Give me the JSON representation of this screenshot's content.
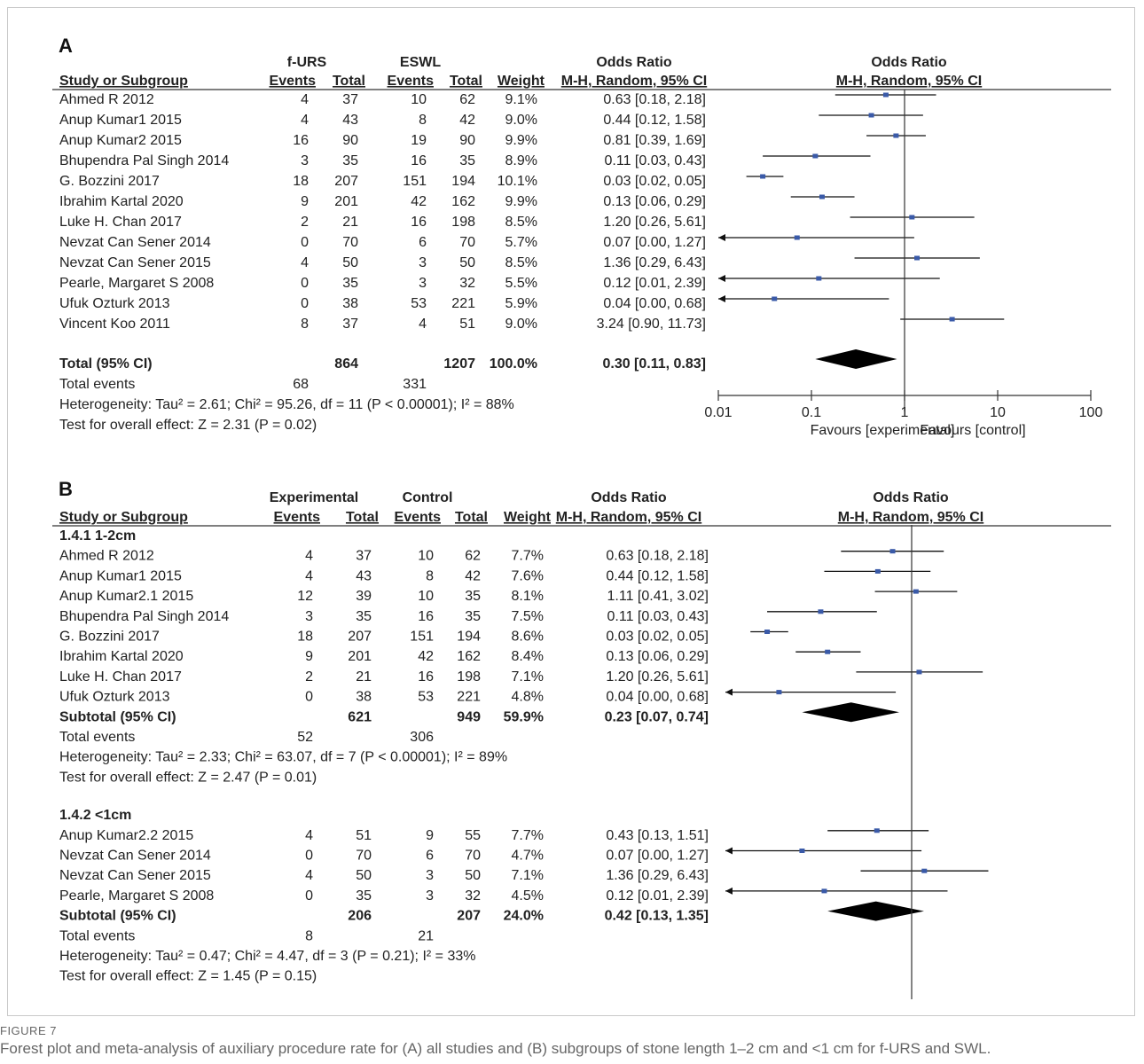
{
  "chart_data": [
    {
      "type": "forest",
      "panel": "A",
      "group_headers": [
        "f-URS",
        "ESWL"
      ],
      "columns": [
        "Study or Subgroup",
        "Events",
        "Total",
        "Events",
        "Total",
        "Weight"
      ],
      "or_header_top": "Odds Ratio",
      "or_header_sub": "M-H, Random, 95% CI",
      "plot_header_top": "Odds Ratio",
      "plot_header_sub": "M-H, Random, 95% CI",
      "axis": {
        "scale": "log",
        "ticks": [
          0.01,
          0.1,
          1,
          10,
          100
        ],
        "tick_labels": [
          "0.01",
          "0.1",
          "1",
          "10",
          "100"
        ],
        "xlim": [
          0.01,
          100
        ]
      },
      "favours_left": "Favours [experimental]",
      "favours_right": "Favours [control]",
      "sections": [
        {
          "heading": "",
          "studies": [
            {
              "name": "Ahmed R 2012",
              "e1": "4",
              "t1": "37",
              "e2": "10",
              "t2": "62",
              "weight": "9.1%",
              "ci_text": "0.63 [0.18, 2.18]",
              "or": 0.63,
              "lo": 0.18,
              "hi": 2.18
            },
            {
              "name": "Anup Kumar1 2015",
              "e1": "4",
              "t1": "43",
              "e2": "8",
              "t2": "42",
              "weight": "9.0%",
              "ci_text": "0.44 [0.12, 1.58]",
              "or": 0.44,
              "lo": 0.12,
              "hi": 1.58
            },
            {
              "name": "Anup Kumar2 2015",
              "e1": "16",
              "t1": "90",
              "e2": "19",
              "t2": "90",
              "weight": "9.9%",
              "ci_text": "0.81 [0.39, 1.69]",
              "or": 0.81,
              "lo": 0.39,
              "hi": 1.69
            },
            {
              "name": "Bhupendra Pal Singh 2014",
              "e1": "3",
              "t1": "35",
              "e2": "16",
              "t2": "35",
              "weight": "8.9%",
              "ci_text": "0.11 [0.03, 0.43]",
              "or": 0.11,
              "lo": 0.03,
              "hi": 0.43
            },
            {
              "name": "G. Bozzini 2017",
              "e1": "18",
              "t1": "207",
              "e2": "151",
              "t2": "194",
              "weight": "10.1%",
              "ci_text": "0.03 [0.02, 0.05]",
              "or": 0.03,
              "lo": 0.02,
              "hi": 0.05
            },
            {
              "name": "Ibrahim Kartal 2020",
              "e1": "9",
              "t1": "201",
              "e2": "42",
              "t2": "162",
              "weight": "9.9%",
              "ci_text": "0.13 [0.06, 0.29]",
              "or": 0.13,
              "lo": 0.06,
              "hi": 0.29
            },
            {
              "name": "Luke H. Chan 2017",
              "e1": "2",
              "t1": "21",
              "e2": "16",
              "t2": "198",
              "weight": "8.5%",
              "ci_text": "1.20 [0.26, 5.61]",
              "or": 1.2,
              "lo": 0.26,
              "hi": 5.61
            },
            {
              "name": "Nevzat Can Sener 2014",
              "e1": "0",
              "t1": "70",
              "e2": "6",
              "t2": "70",
              "weight": "5.7%",
              "ci_text": "0.07 [0.00, 1.27]",
              "or": 0.07,
              "lo": 0.004,
              "hi": 1.27
            },
            {
              "name": "Nevzat Can Sener 2015",
              "e1": "4",
              "t1": "50",
              "e2": "3",
              "t2": "50",
              "weight": "8.5%",
              "ci_text": "1.36 [0.29, 6.43]",
              "or": 1.36,
              "lo": 0.29,
              "hi": 6.43
            },
            {
              "name": "Pearle, Margaret S 2008",
              "e1": "0",
              "t1": "35",
              "e2": "3",
              "t2": "32",
              "weight": "5.5%",
              "ci_text": "0.12 [0.01, 2.39]",
              "or": 0.12,
              "lo": 0.006,
              "hi": 2.39
            },
            {
              "name": "Ufuk Ozturk 2013",
              "e1": "0",
              "t1": "38",
              "e2": "53",
              "t2": "221",
              "weight": "5.9%",
              "ci_text": "0.04 [0.00, 0.68]",
              "or": 0.04,
              "lo": 0.002,
              "hi": 0.68
            },
            {
              "name": "Vincent Koo 2011",
              "e1": "8",
              "t1": "37",
              "e2": "4",
              "t2": "51",
              "weight": "9.0%",
              "ci_text": "3.24 [0.90, 11.73]",
              "or": 3.24,
              "lo": 0.9,
              "hi": 11.73
            }
          ],
          "total": {
            "label": "Total (95% CI)",
            "t1": "864",
            "t2": "1207",
            "weight": "100.0%",
            "ci_text": "0.30 [0.11, 0.83]",
            "or": 0.3,
            "lo": 0.11,
            "hi": 0.83
          },
          "events": {
            "label": "Total events",
            "e1": "68",
            "e2": "331"
          },
          "heterogeneity": "Heterogeneity: Tau² = 2.61; Chi² = 95.26, df = 11 (P < 0.00001); I² = 88%",
          "overall": "Test for overall effect: Z = 2.31 (P = 0.02)"
        }
      ]
    },
    {
      "type": "forest",
      "panel": "B",
      "group_headers": [
        "Experimental",
        "Control"
      ],
      "columns": [
        "Study or Subgroup",
        "Events",
        "Total",
        "Events",
        "Total",
        "Weight"
      ],
      "or_header_top": "Odds Ratio",
      "or_header_sub": "M-H, Random, 95% CI",
      "plot_header_top": "Odds Ratio",
      "plot_header_sub": "M-H, Random, 95% CI",
      "axis": {
        "scale": "log",
        "xlim": [
          0.01,
          100
        ]
      },
      "sections": [
        {
          "heading": "1.4.1 1-2cm",
          "studies": [
            {
              "name": "Ahmed R 2012",
              "e1": "4",
              "t1": "37",
              "e2": "10",
              "t2": "62",
              "weight": "7.7%",
              "ci_text": "0.63 [0.18, 2.18]",
              "or": 0.63,
              "lo": 0.18,
              "hi": 2.18
            },
            {
              "name": "Anup Kumar1 2015",
              "e1": "4",
              "t1": "43",
              "e2": "8",
              "t2": "42",
              "weight": "7.6%",
              "ci_text": "0.44 [0.12, 1.58]",
              "or": 0.44,
              "lo": 0.12,
              "hi": 1.58
            },
            {
              "name": "Anup Kumar2.1 2015",
              "e1": "12",
              "t1": "39",
              "e2": "10",
              "t2": "35",
              "weight": "8.1%",
              "ci_text": "1.11 [0.41, 3.02]",
              "or": 1.11,
              "lo": 0.41,
              "hi": 3.02
            },
            {
              "name": "Bhupendra Pal Singh 2014",
              "e1": "3",
              "t1": "35",
              "e2": "16",
              "t2": "35",
              "weight": "7.5%",
              "ci_text": "0.11 [0.03, 0.43]",
              "or": 0.11,
              "lo": 0.03,
              "hi": 0.43
            },
            {
              "name": "G. Bozzini 2017",
              "e1": "18",
              "t1": "207",
              "e2": "151",
              "t2": "194",
              "weight": "8.6%",
              "ci_text": "0.03 [0.02, 0.05]",
              "or": 0.03,
              "lo": 0.02,
              "hi": 0.05
            },
            {
              "name": "Ibrahim Kartal 2020",
              "e1": "9",
              "t1": "201",
              "e2": "42",
              "t2": "162",
              "weight": "8.4%",
              "ci_text": "0.13 [0.06, 0.29]",
              "or": 0.13,
              "lo": 0.06,
              "hi": 0.29
            },
            {
              "name": "Luke H. Chan 2017",
              "e1": "2",
              "t1": "21",
              "e2": "16",
              "t2": "198",
              "weight": "7.1%",
              "ci_text": "1.20 [0.26, 5.61]",
              "or": 1.2,
              "lo": 0.26,
              "hi": 5.61
            },
            {
              "name": "Ufuk Ozturk 2013",
              "e1": "0",
              "t1": "38",
              "e2": "53",
              "t2": "221",
              "weight": "4.8%",
              "ci_text": "0.04 [0.00, 0.68]",
              "or": 0.04,
              "lo": 0.002,
              "hi": 0.68
            }
          ],
          "total": {
            "label": "Subtotal (95% CI)",
            "t1": "621",
            "t2": "949",
            "weight": "59.9%",
            "ci_text": "0.23 [0.07, 0.74]",
            "or": 0.23,
            "lo": 0.07,
            "hi": 0.74
          },
          "events": {
            "label": "Total events",
            "e1": "52",
            "e2": "306"
          },
          "heterogeneity": "Heterogeneity: Tau² = 2.33; Chi² = 63.07, df = 7 (P < 0.00001); I² = 89%",
          "overall": "Test for overall effect: Z = 2.47 (P = 0.01)"
        },
        {
          "heading": "1.4.2 <1cm",
          "studies": [
            {
              "name": "Anup Kumar2.2 2015",
              "e1": "4",
              "t1": "51",
              "e2": "9",
              "t2": "55",
              "weight": "7.7%",
              "ci_text": "0.43 [0.13, 1.51]",
              "or": 0.43,
              "lo": 0.13,
              "hi": 1.51
            },
            {
              "name": "Nevzat Can Sener 2014",
              "e1": "0",
              "t1": "70",
              "e2": "6",
              "t2": "70",
              "weight": "4.7%",
              "ci_text": "0.07 [0.00, 1.27]",
              "or": 0.07,
              "lo": 0.004,
              "hi": 1.27
            },
            {
              "name": "Nevzat Can Sener 2015",
              "e1": "4",
              "t1": "50",
              "e2": "3",
              "t2": "50",
              "weight": "7.1%",
              "ci_text": "1.36 [0.29, 6.43]",
              "or": 1.36,
              "lo": 0.29,
              "hi": 6.43
            },
            {
              "name": "Pearle, Margaret S 2008",
              "e1": "0",
              "t1": "35",
              "e2": "3",
              "t2": "32",
              "weight": "4.5%",
              "ci_text": "0.12 [0.01, 2.39]",
              "or": 0.12,
              "lo": 0.006,
              "hi": 2.39
            }
          ],
          "total": {
            "label": "Subtotal (95% CI)",
            "t1": "206",
            "t2": "207",
            "weight": "24.0%",
            "ci_text": "0.42 [0.13, 1.35]",
            "or": 0.42,
            "lo": 0.13,
            "hi": 1.35
          },
          "events": {
            "label": "Total events",
            "e1": "8",
            "e2": "21"
          },
          "heterogeneity": "Heterogeneity: Tau² = 0.47; Chi² = 4.47, df = 3 (P = 0.21); I² = 33%",
          "overall": "Test for overall effect: Z = 1.45 (P = 0.15)"
        }
      ]
    }
  ],
  "caption": {
    "label": "FIGURE 7",
    "text": "Forest plot and meta-analysis of auxiliary procedure rate for (A) all studies and (B) subgroups of stone length 1–2 cm and <1 cm for f-URS and SWL."
  },
  "colors": {
    "marker": "#3a5aa8",
    "line": "#111111",
    "diamond": "#000000",
    "frame": "#c9c9c9",
    "caption": "#666666"
  }
}
